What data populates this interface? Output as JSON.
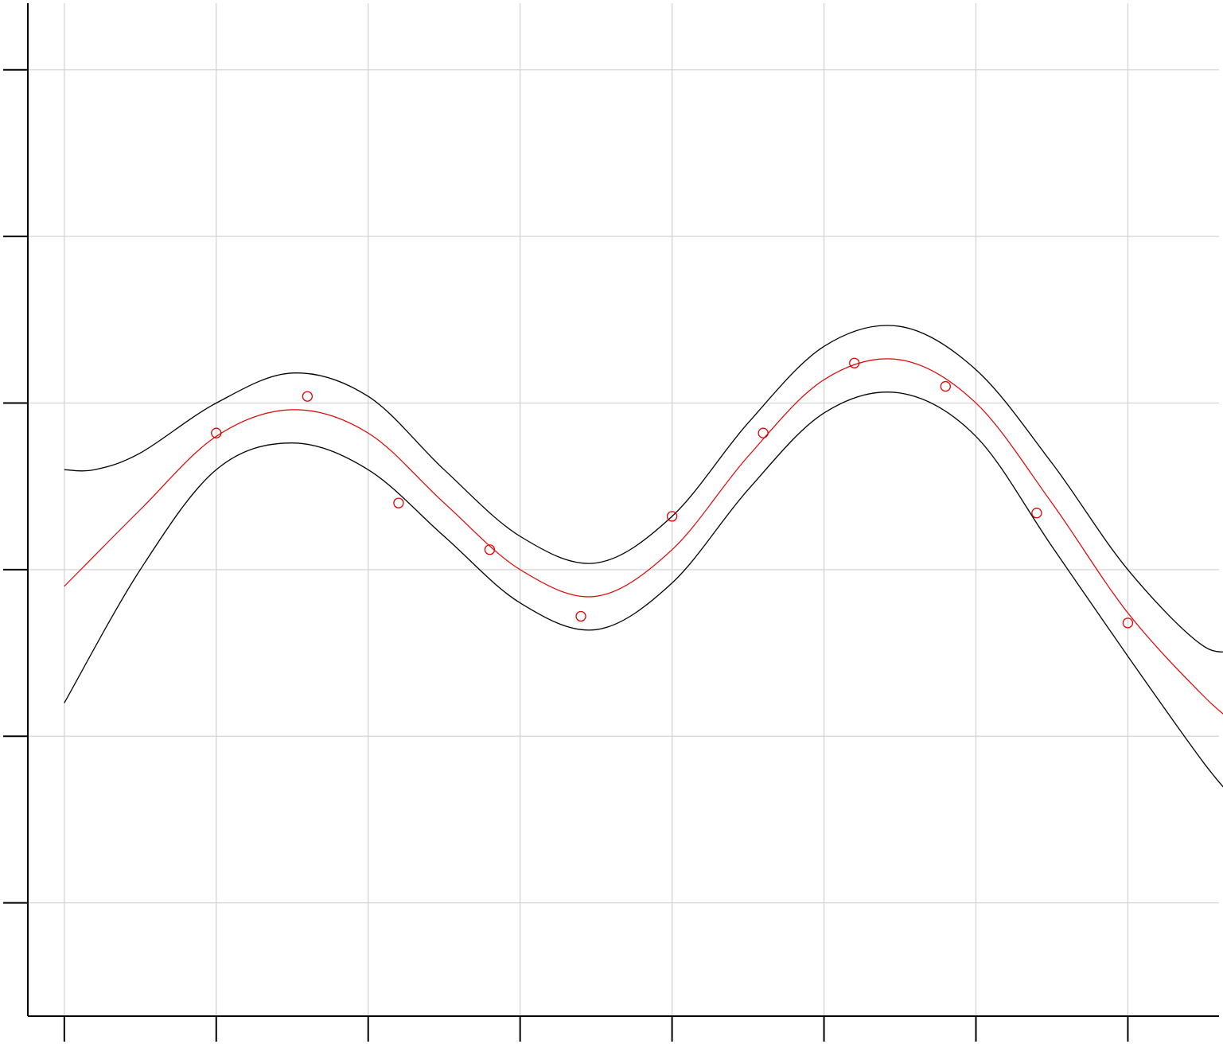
{
  "chart_data": {
    "type": "line",
    "title": "",
    "xlabel": "",
    "ylabel": "",
    "xlim": [
      -0.12,
      3.8
    ],
    "ylim": [
      -1.84,
      1.2
    ],
    "xticks": [
      0,
      0.5,
      1,
      1.5,
      2,
      2.5,
      3,
      3.5
    ],
    "yticks": [
      -1.5,
      -1,
      -0.5,
      0,
      0.5,
      1
    ],
    "tick_labels_visible": false,
    "grid": true,
    "legend": "none",
    "colors": {
      "fit": "#e00000",
      "band": "#000000",
      "points": "#e00000",
      "grid": "#d4d4d4"
    },
    "series": [
      {
        "kind": "points",
        "x": [
          0.5,
          0.8,
          1.1,
          1.4,
          1.7,
          2.0,
          2.3,
          2.6,
          2.9,
          3.2,
          3.5
        ],
        "y": [
          -0.09,
          0.02,
          -0.3,
          -0.44,
          -0.64,
          -0.34,
          -0.09,
          0.12,
          0.05,
          -0.33,
          -0.66
        ]
      },
      {
        "kind": "fit",
        "x": [
          0,
          0.25,
          0.5,
          0.75,
          1.0,
          1.25,
          1.5,
          1.75,
          2.0,
          2.25,
          2.5,
          2.75,
          3.0,
          3.25,
          3.5,
          3.75,
          3.88
        ],
        "y": [
          -0.55,
          -0.32,
          -0.1,
          -0.02,
          -0.09,
          -0.3,
          -0.5,
          -0.58,
          -0.44,
          -0.16,
          0.07,
          0.13,
          0.0,
          -0.3,
          -0.63,
          -0.88,
          -0.98
        ]
      },
      {
        "kind": "upper",
        "x": [
          0,
          0.1,
          0.25,
          0.5,
          0.75,
          1.0,
          1.25,
          1.5,
          1.75,
          2.0,
          2.25,
          2.5,
          2.75,
          3.0,
          3.25,
          3.5,
          3.75,
          3.88
        ],
        "y": [
          -0.2,
          -0.2,
          -0.15,
          0.0,
          0.09,
          0.02,
          -0.2,
          -0.4,
          -0.48,
          -0.34,
          -0.06,
          0.17,
          0.23,
          0.1,
          -0.18,
          -0.5,
          -0.73,
          -0.73
        ]
      },
      {
        "kind": "lower",
        "x": [
          0,
          0.25,
          0.5,
          0.75,
          1.0,
          1.25,
          1.5,
          1.75,
          2.0,
          2.25,
          2.5,
          2.75,
          3.0,
          3.25,
          3.5,
          3.75,
          3.88
        ],
        "y": [
          -0.9,
          -0.5,
          -0.2,
          -0.12,
          -0.2,
          -0.4,
          -0.6,
          -0.68,
          -0.54,
          -0.26,
          -0.03,
          0.03,
          -0.1,
          -0.43,
          -0.76,
          -1.08,
          -1.22
        ]
      }
    ]
  }
}
